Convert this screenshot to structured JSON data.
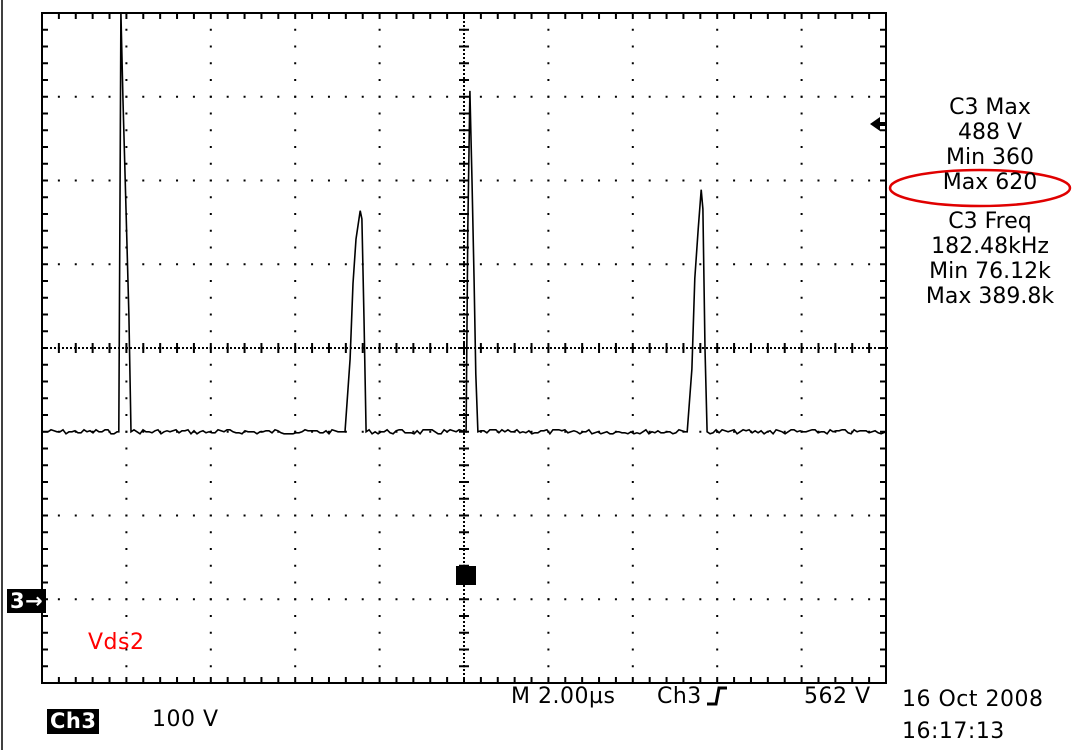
{
  "chart_data": {
    "type": "line",
    "title": "",
    "xlabel": "",
    "ylabel": "",
    "x_units": "µs",
    "y_units": "V",
    "xlim": [
      -10,
      10
    ],
    "ylim": [
      -300,
      500
    ],
    "x_divisions": 10,
    "y_divisions": 8,
    "grid": true,
    "series": [
      {
        "name": "Vds2",
        "color": "#000000",
        "x": [
          -10,
          -8.22,
          -8.18,
          -8.15,
          -8.13,
          -8.08,
          -8.01,
          -7.94,
          -7.89,
          -2.82,
          -2.7,
          -2.63,
          -2.56,
          -2.46,
          -2.42,
          -2.37,
          -2.32,
          0.05,
          0.09,
          0.14,
          0.19,
          0.24,
          0.28,
          0.33,
          5.29,
          5.4,
          5.47,
          5.55,
          5.62,
          5.66,
          5.71,
          5.76,
          10
        ],
        "y": [
          0,
          0,
          0,
          300,
          501,
          395,
          266,
          139,
          0,
          0,
          87,
          177,
          230,
          264,
          254,
          135,
          0,
          0,
          242,
          407,
          300,
          180,
          69,
          0,
          0,
          75,
          183,
          242,
          289,
          266,
          99,
          0,
          0
        ]
      }
    ],
    "annotations": [
      {
        "text": "Vds2",
        "color": "#ff0000"
      }
    ]
  },
  "scope": {
    "channel_marker": "3",
    "channel_label": "Ch3",
    "volts_per_div": "100 V",
    "timebase": "M 2.00µs",
    "trigger_source": "Ch3",
    "trigger_level": "562 V",
    "date": "16 Oct 2008",
    "time": "16:17:13",
    "trace_label": "Vds2",
    "highlight_color": "#ff0000"
  },
  "measurements": {
    "max_title": "C3 Max",
    "max_value": "488 V",
    "max_min": "Min 360",
    "max_max": "Max 620",
    "freq_title": "C3 Freq",
    "freq_value": "182.48kHz",
    "freq_min": "Min 76.12k",
    "freq_max": "Max 389.8k"
  }
}
